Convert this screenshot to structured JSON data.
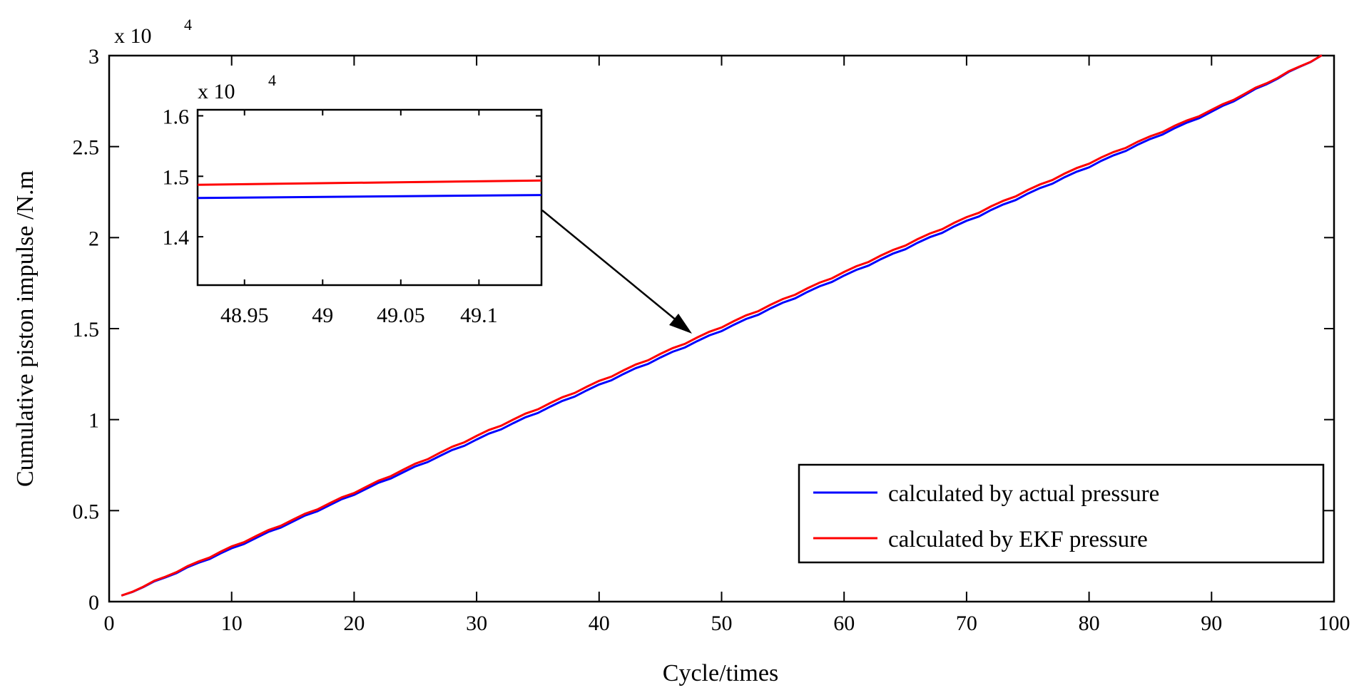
{
  "chart_data": [
    {
      "type": "line",
      "role": "main",
      "xlabel": "Cycle/times",
      "ylabel": "Cumulative piston impulse  /N.m",
      "y_multiplier": "x 10",
      "y_exponent": "4",
      "xlim": [
        0,
        100
      ],
      "ylim": [
        0,
        3
      ],
      "xticks": [
        0,
        10,
        20,
        30,
        40,
        50,
        60,
        70,
        80,
        90,
        100
      ],
      "xtick_labels": [
        "0",
        "10",
        "20",
        "30",
        "40",
        "50",
        "60",
        "70",
        "80",
        "90",
        "100"
      ],
      "yticks": [
        0,
        0.5,
        1,
        1.5,
        2,
        2.5,
        3
      ],
      "ytick_labels": [
        "0",
        "0.5",
        "1",
        "1.5",
        "2",
        "2.5",
        "3"
      ],
      "series": [
        {
          "name": "calculated by actual pressure",
          "color": "#0000ff",
          "x": [
            1,
            10,
            20,
            30,
            40,
            50,
            60,
            70,
            80,
            90,
            99
          ],
          "y": [
            0.03,
            0.29,
            0.59,
            0.89,
            1.19,
            1.49,
            1.79,
            2.09,
            2.39,
            2.69,
            3.0
          ]
        },
        {
          "name": "calculated by EKF pressure",
          "color": "#ff0000",
          "x": [
            1,
            10,
            20,
            30,
            40,
            50,
            60,
            70,
            80,
            90,
            99
          ],
          "y": [
            0.03,
            0.3,
            0.6,
            0.91,
            1.21,
            1.51,
            1.81,
            2.11,
            2.41,
            2.7,
            3.0
          ]
        }
      ],
      "legend_position": "bottom-right"
    },
    {
      "type": "line",
      "role": "inset",
      "y_multiplier": "x 10",
      "y_exponent": "4",
      "xlim": [
        48.92,
        49.14
      ],
      "ylim": [
        1.32,
        1.61
      ],
      "xticks": [
        48.95,
        49,
        49.05,
        49.1
      ],
      "xtick_labels": [
        "48.95",
        "49",
        "49.05",
        "49.1"
      ],
      "yticks": [
        1.4,
        1.5,
        1.6
      ],
      "ytick_labels": [
        "1.4",
        "1.5",
        "1.6"
      ],
      "series": [
        {
          "name": "calculated by EKF pressure",
          "color": "#ff0000",
          "x": [
            48.92,
            49.14
          ],
          "y": [
            1.486,
            1.493
          ]
        },
        {
          "name": "calculated by actual pressure",
          "color": "#0000ff",
          "x": [
            48.92,
            49.14
          ],
          "y": [
            1.464,
            1.469
          ]
        }
      ],
      "annotation": "arrow"
    }
  ]
}
